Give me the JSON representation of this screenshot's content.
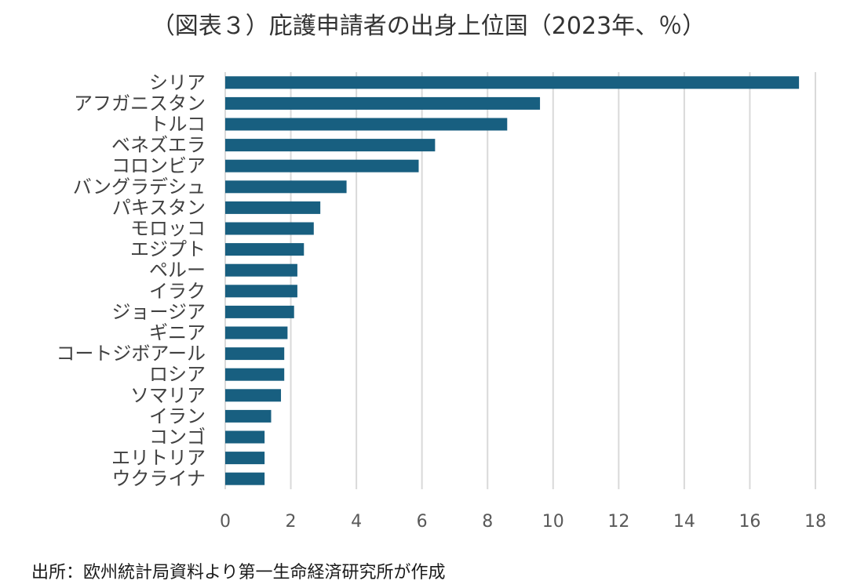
{
  "header": {
    "title": "（図表３）庇護申請者の出身上位国（2023年、％）"
  },
  "footer": {
    "source": "出所：欧州統計局資料より第一生命経済研究所が作成"
  },
  "colors": {
    "bar": "#185f80",
    "grid": "#d9d9d9",
    "text": "#404040"
  },
  "chart_data": {
    "type": "bar",
    "orientation": "horizontal",
    "title": "（図表３）庇護申請者の出身上位国（2023年、％）",
    "categories": [
      "シリア",
      "アフガニスタン",
      "トルコ",
      "ベネズエラ",
      "コロンビア",
      "バングラデシュ",
      "パキスタン",
      "モロッコ",
      "エジプト",
      "ペルー",
      "イラク",
      "ジョージア",
      "ギニア",
      "コートジボアール",
      "ロシア",
      "ソマリア",
      "イラン",
      "コンゴ",
      "エリトリア",
      "ウクライナ"
    ],
    "values": [
      17.5,
      9.6,
      8.6,
      6.4,
      5.9,
      3.7,
      2.9,
      2.7,
      2.4,
      2.2,
      2.2,
      2.1,
      1.9,
      1.8,
      1.8,
      1.7,
      1.4,
      1.2,
      1.2,
      1.2
    ],
    "xlim": [
      0,
      18
    ],
    "xticks": [
      0,
      2,
      4,
      6,
      8,
      10,
      12,
      14,
      16,
      18
    ],
    "grid": "vertical",
    "legend": "none"
  }
}
